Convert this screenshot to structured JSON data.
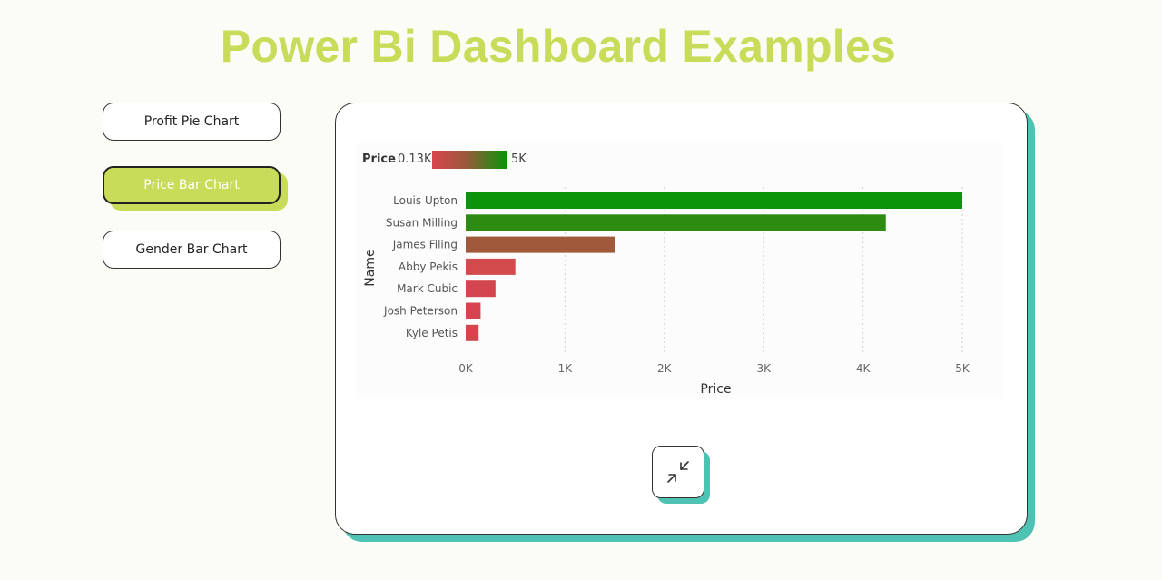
{
  "page": {
    "title": "Power Bi Dashboard Examples"
  },
  "nav": {
    "items": [
      {
        "label": "Profit Pie Chart",
        "active": false
      },
      {
        "label": "Price Bar Chart",
        "active": true
      },
      {
        "label": "Gender Bar Chart",
        "active": false
      }
    ]
  },
  "colors": {
    "accent": "#c9dc5a",
    "teal": "#4fc3b3",
    "low": "#d9444e",
    "high": "#0a9409"
  },
  "legend": {
    "title": "Price",
    "min": "0.13K",
    "max": "5K"
  },
  "chart_data": {
    "type": "bar",
    "orientation": "horizontal",
    "xlabel": "Price",
    "ylabel": "Name",
    "categories": [
      "Louis Upton",
      "Susan Milling",
      "James Filing",
      "Abby Pekis",
      "Mark Cubic",
      "Josh Peterson",
      "Kyle Petis"
    ],
    "values": [
      5000,
      4230,
      1500,
      500,
      300,
      150,
      130
    ],
    "bar_colors": [
      "#0a9409",
      "#2e8b12",
      "#a0593a",
      "#d24a4c",
      "#d4464f",
      "#d6454f",
      "#d7444e"
    ],
    "xlim": [
      0,
      5000
    ],
    "xticks": [
      "0K",
      "1K",
      "2K",
      "3K",
      "4K",
      "5K"
    ],
    "grid": "vertical dotted"
  },
  "compress_button": {
    "icon": "compress-icon"
  }
}
